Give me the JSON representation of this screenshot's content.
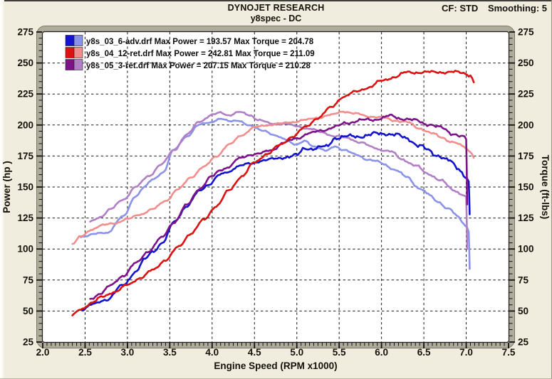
{
  "header": {
    "title": "DYNOJET RESEARCH",
    "subtitle": "y8spec - DC",
    "cf_value": "CF: STD",
    "smoothing_value": "Smoothing: 5"
  },
  "chart_data": {
    "type": "line",
    "xlabel": "Engine Speed (RPM x1000)",
    "ylabel_left": "Power (hp )",
    "ylabel_right": "Torque (ft-lbs)",
    "xlim": [
      2.0,
      7.5
    ],
    "ylim": [
      25,
      275
    ],
    "x_ticks": [
      2.0,
      2.5,
      3.0,
      3.5,
      4.0,
      4.5,
      5.0,
      5.5,
      6.0,
      6.5,
      7.0,
      7.5
    ],
    "y_ticks": [
      25,
      50,
      75,
      100,
      125,
      150,
      175,
      200,
      225,
      250,
      275
    ],
    "grid": "dashed",
    "legend_position": "top-left",
    "colors": {
      "grid": "#1a1a1a",
      "plot_bg": "#ffffff",
      "frame_band": "#b0ac9b",
      "text": "#14110a"
    },
    "runs": [
      {
        "id": "blue",
        "file": "y8s_03_6-adv.drf",
        "max_power": 193.57,
        "max_torque": 204.78,
        "legend_label": "y8s_03_6-adv.drf Max Power = 193.57 Max Torque = 204.78",
        "power_color": "#1414cf",
        "torque_color": "#8a92e9",
        "power_points": [
          [
            2.45,
            51.3
          ],
          [
            2.6,
            55.4
          ],
          [
            2.75,
            59.2
          ],
          [
            2.95,
            70.8
          ],
          [
            3.1,
            81.9
          ],
          [
            3.2,
            91.4
          ],
          [
            3.3,
            98.0
          ],
          [
            3.42,
            105.5
          ],
          [
            3.55,
            121.7
          ],
          [
            3.7,
            134.6
          ],
          [
            3.85,
            146.6
          ],
          [
            3.95,
            151.9
          ],
          [
            4.1,
            159.9
          ],
          [
            4.2,
            162.3
          ],
          [
            4.3,
            167.0
          ],
          [
            4.45,
            168.6
          ],
          [
            4.6,
            171.6
          ],
          [
            4.75,
            172.7
          ],
          [
            4.85,
            174.5
          ],
          [
            5.0,
            175.2
          ],
          [
            5.1,
            181.6
          ],
          [
            5.2,
            181.2
          ],
          [
            5.35,
            182.3
          ],
          [
            5.45,
            189.9
          ],
          [
            5.55,
            190.2
          ],
          [
            5.7,
            191.0
          ],
          [
            5.85,
            191.6
          ],
          [
            5.95,
            193.1
          ],
          [
            6.05,
            193.5
          ],
          [
            6.15,
            192.0
          ],
          [
            6.3,
            189.5
          ],
          [
            6.45,
            183.0
          ],
          [
            6.55,
            179.6
          ],
          [
            6.65,
            176.0
          ],
          [
            6.8,
            170.9
          ],
          [
            6.9,
            165.5
          ],
          [
            7.0,
            158.6
          ],
          [
            7.03,
            153.9
          ]
        ],
        "power_drop_to": 128,
        "torque_points": [
          [
            2.45,
            110
          ],
          [
            2.6,
            112
          ],
          [
            2.75,
            113
          ],
          [
            2.95,
            126
          ],
          [
            3.1,
            143
          ],
          [
            3.2,
            150
          ],
          [
            3.3,
            156
          ],
          [
            3.42,
            162
          ],
          [
            3.55,
            180
          ],
          [
            3.7,
            191
          ],
          [
            3.85,
            200
          ],
          [
            3.95,
            202
          ],
          [
            4.1,
            204.8
          ],
          [
            4.2,
            203
          ],
          [
            4.3,
            204
          ],
          [
            4.45,
            199
          ],
          [
            4.6,
            196
          ],
          [
            4.75,
            191
          ],
          [
            4.85,
            189
          ],
          [
            5.0,
            184
          ],
          [
            5.1,
            187
          ],
          [
            5.2,
            183
          ],
          [
            5.35,
            179
          ],
          [
            5.45,
            183
          ],
          [
            5.55,
            180
          ],
          [
            5.7,
            176
          ],
          [
            5.85,
            172
          ],
          [
            5.95,
            170.5
          ],
          [
            6.05,
            168
          ],
          [
            6.15,
            164
          ],
          [
            6.3,
            158
          ],
          [
            6.45,
            149
          ],
          [
            6.55,
            144
          ],
          [
            6.65,
            139
          ],
          [
            6.8,
            132
          ],
          [
            6.9,
            126
          ],
          [
            7.0,
            119
          ],
          [
            7.03,
            115
          ]
        ],
        "torque_drop_to": 84
      },
      {
        "id": "red",
        "file": "y8s_04_12-ret.drf",
        "max_power": 242.81,
        "max_torque": 211.09,
        "legend_label": "y8s_04_12-ret.drf Max Power = 242.81 Max Torque = 211.09",
        "power_color": "#de1111",
        "torque_color": "#f28d8d",
        "power_points": [
          [
            2.35,
            46.5
          ],
          [
            2.45,
            51.3
          ],
          [
            2.58,
            57.0
          ],
          [
            2.7,
            61.2
          ],
          [
            2.85,
            65.7
          ],
          [
            3.0,
            70.8
          ],
          [
            3.15,
            76.8
          ],
          [
            3.3,
            82.9
          ],
          [
            3.45,
            91.3
          ],
          [
            3.6,
            101.4
          ],
          [
            3.75,
            112.8
          ],
          [
            3.9,
            123.3
          ],
          [
            4.05,
            134.9
          ],
          [
            4.2,
            147.1
          ],
          [
            4.35,
            158.9
          ],
          [
            4.5,
            169.6
          ],
          [
            4.65,
            177.0
          ],
          [
            4.8,
            183.7
          ],
          [
            4.95,
            190.9
          ],
          [
            5.1,
            198.1
          ],
          [
            5.25,
            205.9
          ],
          [
            5.4,
            213.9
          ],
          [
            5.55,
            223.0
          ],
          [
            5.7,
            226.8
          ],
          [
            5.85,
            230.6
          ],
          [
            6.0,
            235.4
          ],
          [
            6.15,
            238.9
          ],
          [
            6.3,
            242.3
          ],
          [
            6.45,
            242.6
          ],
          [
            6.6,
            242.5
          ],
          [
            6.7,
            242.8
          ],
          [
            6.85,
            242.6
          ],
          [
            6.95,
            242.2
          ],
          [
            7.05,
            240.4
          ],
          [
            7.1,
            233.5
          ]
        ],
        "power_drop_to": null,
        "torque_points": [
          [
            2.35,
            104
          ],
          [
            2.45,
            110
          ],
          [
            2.58,
            116
          ],
          [
            2.7,
            119
          ],
          [
            2.85,
            121
          ],
          [
            3.0,
            124
          ],
          [
            3.15,
            128
          ],
          [
            3.3,
            132
          ],
          [
            3.45,
            139
          ],
          [
            3.6,
            148
          ],
          [
            3.75,
            158
          ],
          [
            3.9,
            166
          ],
          [
            4.05,
            175
          ],
          [
            4.2,
            184
          ],
          [
            4.35,
            192
          ],
          [
            4.5,
            198
          ],
          [
            4.65,
            200
          ],
          [
            4.8,
            201
          ],
          [
            4.95,
            202.5
          ],
          [
            5.1,
            204
          ],
          [
            5.25,
            206
          ],
          [
            5.4,
            208
          ],
          [
            5.55,
            211.1
          ],
          [
            5.7,
            209
          ],
          [
            5.85,
            207
          ],
          [
            6.0,
            206
          ],
          [
            6.15,
            204
          ],
          [
            6.3,
            202
          ],
          [
            6.45,
            197.5
          ],
          [
            6.6,
            193
          ],
          [
            6.7,
            190.3
          ],
          [
            6.85,
            186
          ],
          [
            6.95,
            183
          ],
          [
            7.05,
            179
          ],
          [
            7.1,
            174
          ]
        ],
        "torque_drop_to": null
      },
      {
        "id": "purple",
        "file": "y8s_05_3-ret.drf",
        "max_power": 207.15,
        "max_torque": 210.28,
        "legend_label": "y8s_05_3-ret.drf Max Power = 207.15 Max Torque = 210.28",
        "power_color": "#7c1389",
        "torque_color": "#b17fc6",
        "power_points": [
          [
            2.56,
            59.5
          ],
          [
            2.68,
            64.3
          ],
          [
            2.8,
            70.4
          ],
          [
            2.95,
            78.6
          ],
          [
            3.1,
            88.5
          ],
          [
            3.25,
            98.4
          ],
          [
            3.4,
            108.8
          ],
          [
            3.55,
            121.7
          ],
          [
            3.7,
            135.3
          ],
          [
            3.85,
            148.8
          ],
          [
            4.0,
            158.4
          ],
          [
            4.1,
            164.0
          ],
          [
            4.2,
            166.3
          ],
          [
            4.32,
            173.0
          ],
          [
            4.45,
            176.2
          ],
          [
            4.55,
            176.7
          ],
          [
            4.7,
            179.9
          ],
          [
            4.85,
            185.6
          ],
          [
            5.0,
            189.5
          ],
          [
            5.15,
            193.2
          ],
          [
            5.3,
            195.8
          ],
          [
            5.45,
            198.2
          ],
          [
            5.6,
            202.1
          ],
          [
            5.75,
            203.6
          ],
          [
            5.9,
            204.4
          ],
          [
            6.0,
            205.6
          ],
          [
            6.1,
            207.2
          ],
          [
            6.25,
            205.3
          ],
          [
            6.4,
            203.5
          ],
          [
            6.55,
            200.8
          ],
          [
            6.7,
            197.7
          ],
          [
            6.85,
            193.1
          ],
          [
            6.95,
            190.5
          ],
          [
            7.01,
            188.2
          ]
        ],
        "power_drop_to": 136,
        "torque_points": [
          [
            2.56,
            122
          ],
          [
            2.68,
            126
          ],
          [
            2.8,
            132
          ],
          [
            2.95,
            140
          ],
          [
            3.1,
            150
          ],
          [
            3.25,
            159
          ],
          [
            3.4,
            168
          ],
          [
            3.55,
            180
          ],
          [
            3.7,
            192
          ],
          [
            3.85,
            203
          ],
          [
            4.0,
            208
          ],
          [
            4.1,
            210
          ],
          [
            4.2,
            208
          ],
          [
            4.32,
            210.3
          ],
          [
            4.45,
            208
          ],
          [
            4.55,
            204
          ],
          [
            4.7,
            201
          ],
          [
            4.85,
            201
          ],
          [
            5.0,
            199
          ],
          [
            5.15,
            197
          ],
          [
            5.3,
            194
          ],
          [
            5.45,
            191
          ],
          [
            5.6,
            189.5
          ],
          [
            5.75,
            186
          ],
          [
            5.9,
            182
          ],
          [
            6.0,
            180
          ],
          [
            6.1,
            178.5
          ],
          [
            6.25,
            172.5
          ],
          [
            6.4,
            167
          ],
          [
            6.55,
            161
          ],
          [
            6.7,
            155
          ],
          [
            6.85,
            148
          ],
          [
            6.95,
            144
          ],
          [
            7.01,
            141
          ]
        ],
        "torque_drop_to": 100
      }
    ]
  }
}
